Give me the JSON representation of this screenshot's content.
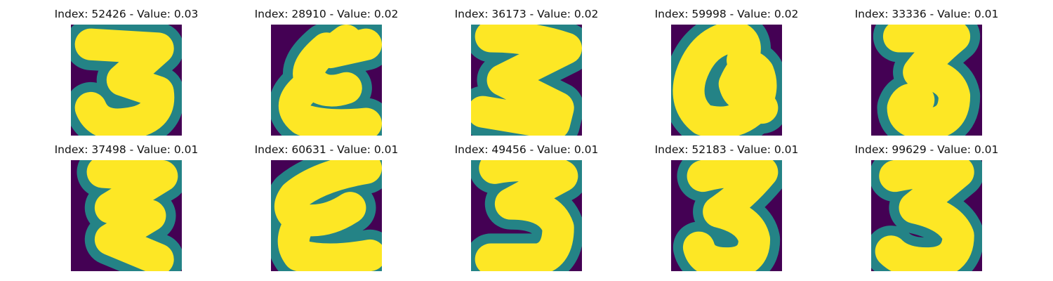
{
  "colors": {
    "background": "#440154",
    "stroke_edge": "#21918c",
    "stroke_core": "#fde725"
  },
  "chart_data": {
    "type": "image-grid",
    "rows": 2,
    "columns": 5,
    "panels": [
      {
        "index": 52426,
        "value": 0.03,
        "title": "Index: 52426 - Value: 0.03",
        "glyph": "digit-3-wide"
      },
      {
        "index": 28910,
        "value": 0.02,
        "title": "Index: 28910 - Value: 0.02",
        "glyph": "reversed-3-thin"
      },
      {
        "index": 36173,
        "value": 0.02,
        "title": "Index: 36173 - Value: 0.02",
        "glyph": "digit-3-zigzag"
      },
      {
        "index": 59998,
        "value": 0.02,
        "title": "Index: 59998 - Value: 0.02",
        "glyph": "loop-a"
      },
      {
        "index": 33336,
        "value": 0.01,
        "title": "Index: 33336 - Value: 0.01",
        "glyph": "digit-3-round"
      },
      {
        "index": 37498,
        "value": 0.01,
        "title": "Index: 37498 - Value: 0.01",
        "glyph": "digit-3-zigzag-bold"
      },
      {
        "index": 60631,
        "value": 0.01,
        "title": "Index: 60631 - Value: 0.01",
        "glyph": "reversed-3-slanted"
      },
      {
        "index": 49456,
        "value": 0.01,
        "title": "Index: 49456 - Value: 0.01",
        "glyph": "digit-3-open"
      },
      {
        "index": 52183,
        "value": 0.01,
        "title": "Index: 52183 - Value: 0.01",
        "glyph": "digit-3-tall"
      },
      {
        "index": 99629,
        "value": 0.01,
        "title": "Index: 99629 - Value: 0.01",
        "glyph": "digit-3-upright"
      }
    ]
  }
}
